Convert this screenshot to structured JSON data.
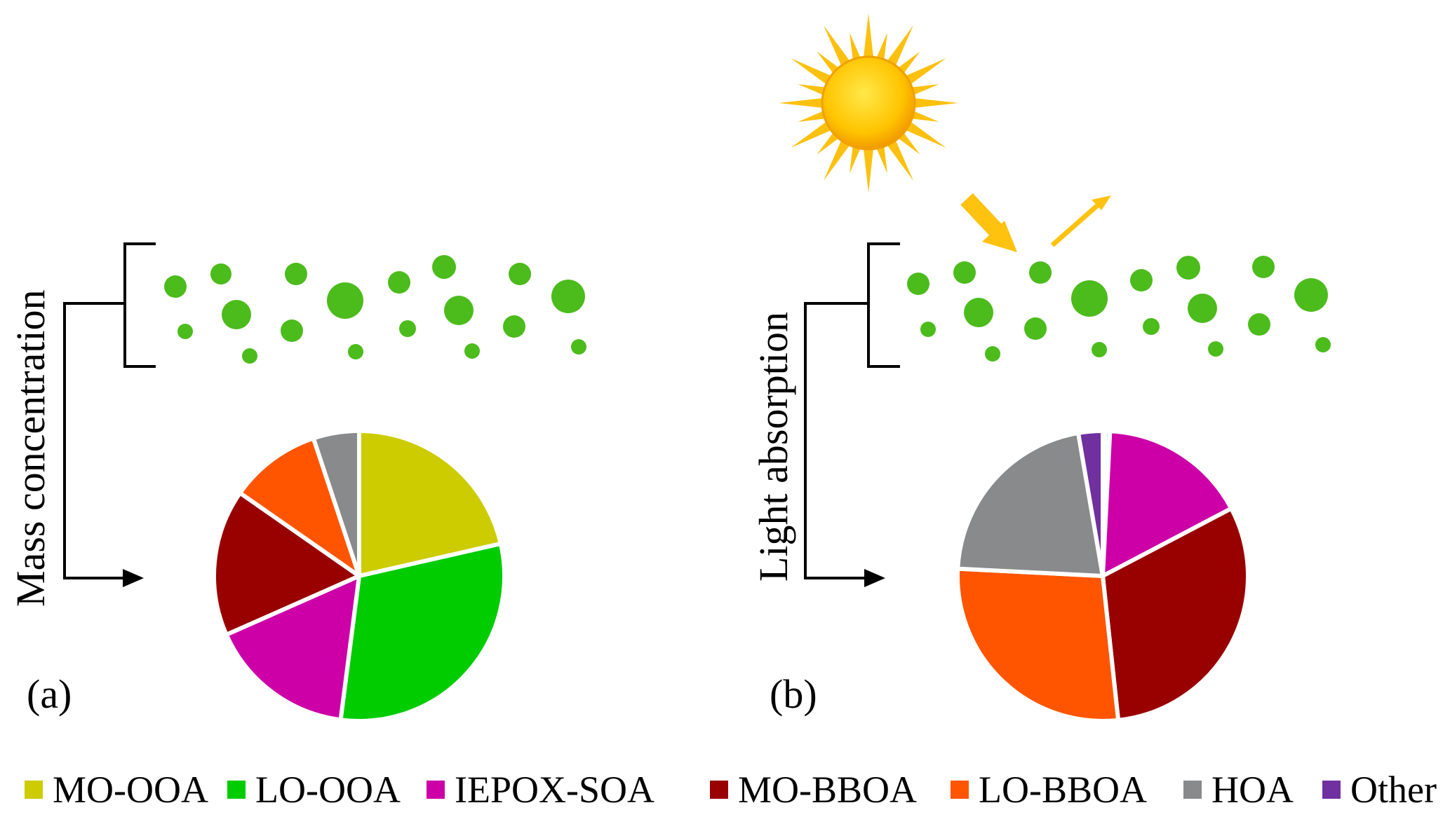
{
  "panels": [
    {
      "label": "(a)",
      "side_label": "Mass concentration"
    },
    {
      "label": "(b)",
      "side_label": "Light absorption"
    }
  ],
  "legend": [
    {
      "name": "MO-OOA",
      "color": "#cccc00"
    },
    {
      "name": "LO-OOA",
      "color": "#00cc00"
    },
    {
      "name": "IEPOX-SOA",
      "color": "#cc00a6"
    },
    {
      "name": "MO-BBOA",
      "color": "#990000"
    },
    {
      "name": "LO-BBOA",
      "color": "#ff5500"
    },
    {
      "name": "HOA",
      "color": "#888a8c"
    },
    {
      "name": "Other",
      "color": "#7030a0"
    }
  ],
  "icons": {
    "sun": "sun-icon",
    "particles": "green-particles",
    "arrows": "sunlight-arrows"
  },
  "chart_data": [
    {
      "type": "pie",
      "title": "",
      "categories": [
        "MO-OOA",
        "LO-OOA",
        "IEPOX-SOA",
        "MO-BBOA",
        "LO-BBOA",
        "HOA",
        "Other"
      ],
      "values": [
        21,
        30,
        16,
        16,
        10,
        5,
        0
      ]
    },
    {
      "type": "pie",
      "title": "",
      "categories": [
        "MO-OOA",
        "LO-OOA",
        "IEPOX-SOA",
        "MO-BBOA",
        "LO-BBOA",
        "HOA",
        "Other"
      ],
      "values": [
        0.3,
        0.5,
        16.5,
        31,
        27.5,
        21.5,
        2.7
      ]
    }
  ]
}
